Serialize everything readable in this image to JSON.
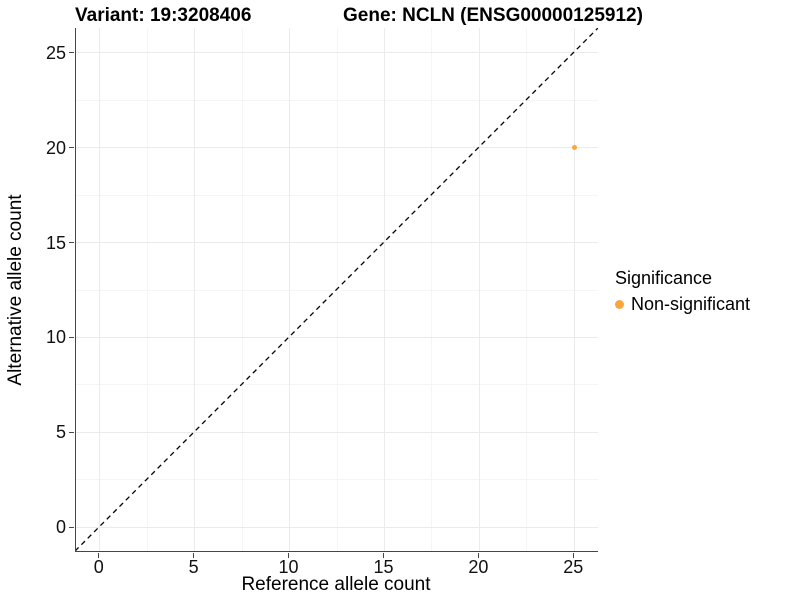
{
  "header": {
    "variant_title": "Variant: 19:3208406",
    "gene_title": "Gene: NCLN (ENSG00000125912)"
  },
  "axes": {
    "x_label": "Reference allele count",
    "y_label": "Alternative allele count"
  },
  "legend": {
    "title": "Significance",
    "items": [
      {
        "label": "Non-significant",
        "color": "#FAA63C"
      }
    ]
  },
  "chart_data": {
    "type": "scatter",
    "title": "Variant: 19:3208406   Gene: NCLN (ENSG00000125912)",
    "xlabel": "Reference allele count",
    "ylabel": "Alternative allele count",
    "xlim": [
      -1.25,
      26.3
    ],
    "ylim": [
      -1.3,
      26.3
    ],
    "x_ticks": [
      0,
      5,
      10,
      15,
      20,
      25
    ],
    "y_ticks": [
      0,
      5,
      10,
      15,
      20,
      25
    ],
    "x_minor_ticks": [
      2.5,
      7.5,
      12.5,
      17.5,
      22.5
    ],
    "y_minor_ticks": [
      2.5,
      7.5,
      12.5,
      17.5,
      22.5
    ],
    "grid": true,
    "legend_position": "right",
    "series": [
      {
        "name": "Non-significant",
        "color": "#FAA63C",
        "point_radius": 2.6,
        "points": [
          {
            "x": 25,
            "y": 20
          }
        ]
      }
    ],
    "identity_line": {
      "style": "dashed",
      "color": "#000000",
      "from": [
        -1.3,
        -1.3
      ],
      "to": [
        26.3,
        26.3
      ]
    }
  },
  "colors": {
    "accent_orange": "#FAA63C",
    "axis_line": "#464646",
    "grid_major": "#ebebeb",
    "grid_minor": "#f5f5f5"
  }
}
